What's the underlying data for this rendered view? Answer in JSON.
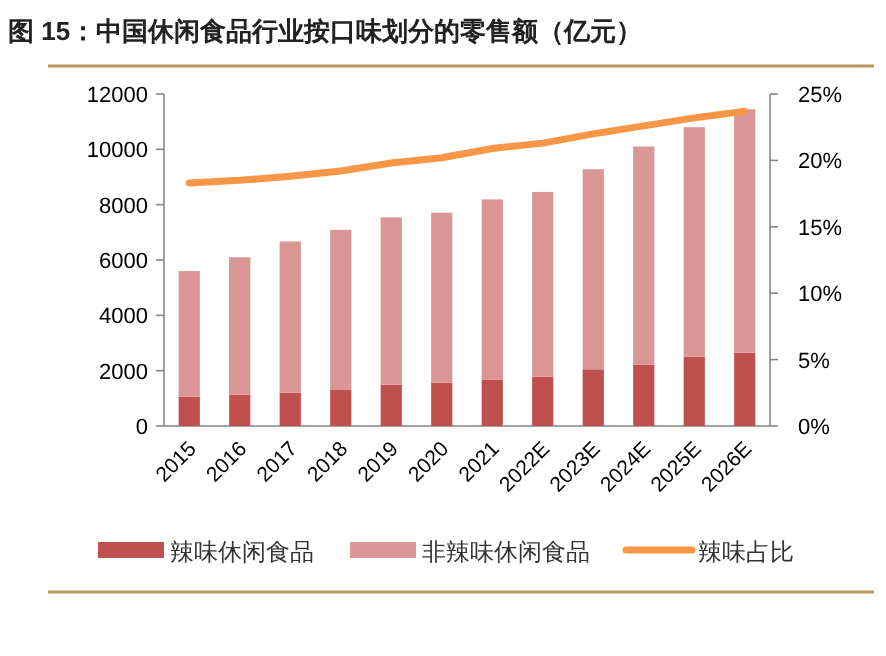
{
  "chart_data": {
    "type": "bar",
    "title": "图 15：中国休闲食品行业按口味划分的零售额（亿元）",
    "stacked": true,
    "legend": "bottom",
    "grid": false,
    "categories": [
      "2015",
      "2016",
      "2017",
      "2018",
      "2019",
      "2020",
      "2021",
      "2022E",
      "2023E",
      "2024E",
      "2025E",
      "2026E"
    ],
    "series": [
      {
        "name": "辣味休闲食品",
        "color": "#c0504d",
        "values": [
          1060,
          1130,
          1200,
          1300,
          1490,
          1560,
          1680,
          1780,
          2050,
          2210,
          2500,
          2650
        ]
      },
      {
        "name": "非辣味休闲食品",
        "color": "#d99694",
        "values": [
          4540,
          4970,
          5470,
          5790,
          6050,
          6150,
          6510,
          6680,
          7230,
          7890,
          8300,
          8800
        ]
      },
      {
        "name": "辣味占比",
        "color": "#f79646",
        "type": "line",
        "axis": "y2",
        "marker": "none",
        "values": [
          18.3,
          18.5,
          18.8,
          19.2,
          19.8,
          20.2,
          20.9,
          21.3,
          22.0,
          22.6,
          23.2,
          23.7
        ]
      }
    ],
    "ylim": [
      0,
      12000
    ],
    "yticks": [
      0,
      2000,
      4000,
      6000,
      8000,
      10000,
      12000
    ],
    "y2lim": [
      0,
      25
    ],
    "y2ticks": [
      {
        "value": 0,
        "label": "0%"
      },
      {
        "value": 5,
        "label": "5%"
      },
      {
        "value": 10,
        "label": "10%"
      },
      {
        "value": 15,
        "label": "15%"
      },
      {
        "value": 20,
        "label": "20%"
      },
      {
        "value": 25,
        "label": "25%"
      }
    ]
  }
}
